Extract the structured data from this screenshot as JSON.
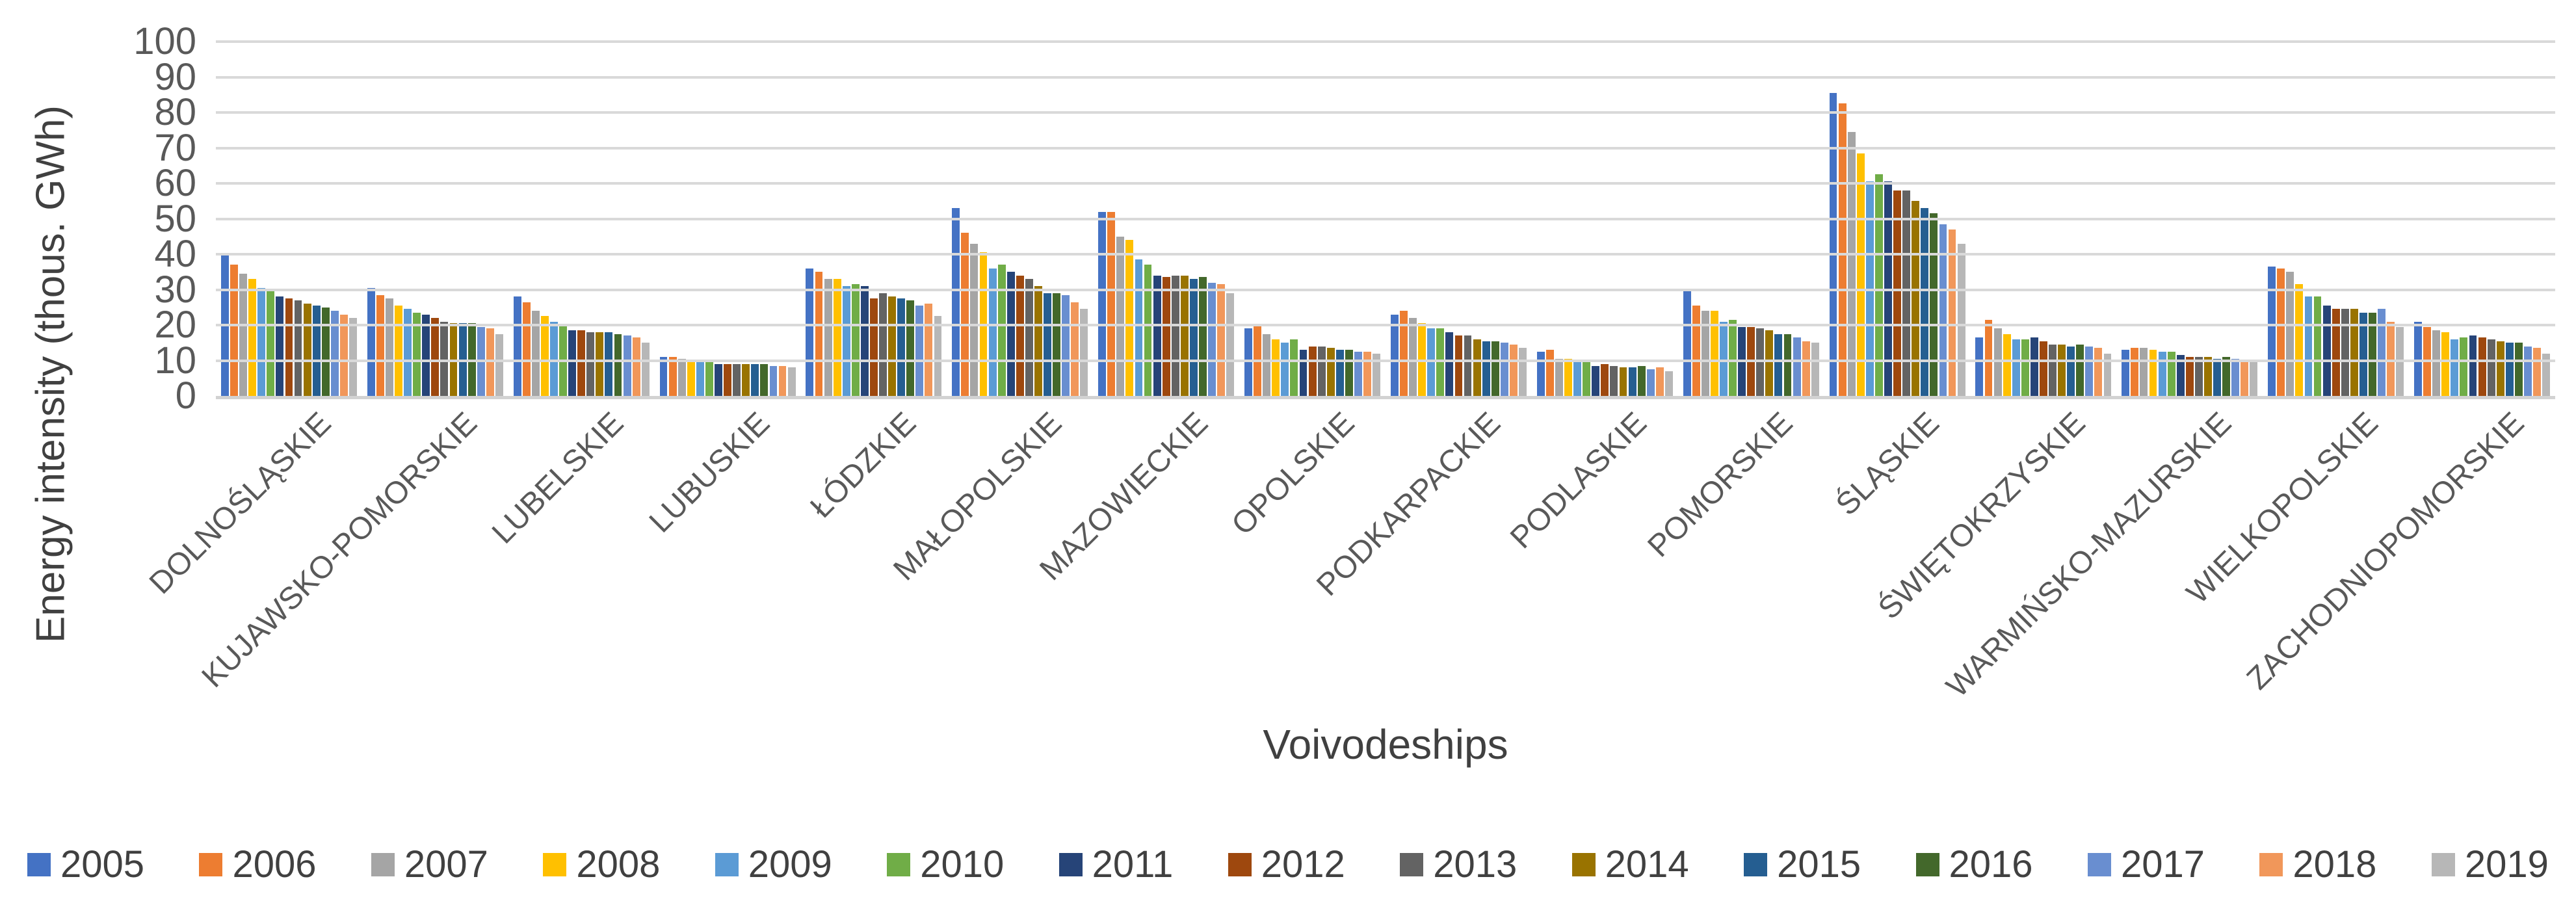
{
  "chart_data": {
    "type": "bar",
    "title": "",
    "xlabel": "Voivodeships",
    "ylabel": "Energy intensity (thous. GWh)",
    "ylim": [
      0,
      100
    ],
    "ytick_step": 10,
    "grid": true,
    "legend_position": "bottom",
    "text_color": "#595959",
    "gridline_color": "#d9d9d9",
    "categories": [
      "DOLNOŚLĄSKIE",
      "KUJAWSKO-POMORSKIE",
      "LUBELSKIE",
      "LUBUSKIE",
      "ŁÓDZKIE",
      "MAŁOPOLSKIE",
      "MAZOWIECKIE",
      "OPOLSKIE",
      "PODKARPACKIE",
      "PODLASKIE",
      "POMORSKIE",
      "ŚLĄSKIE",
      "ŚWIĘTOKRZYSKIE",
      "WARMIŃSKO-MAZURSKIE",
      "WIELKOPOLSKIE",
      "ZACHODNIOPOMORSKIE"
    ],
    "series": [
      {
        "name": "2005",
        "color": "#4472C4",
        "values": [
          40.0,
          30.5,
          28.0,
          11.0,
          36.0,
          53.0,
          52.0,
          19.0,
          23.0,
          12.5,
          30.0,
          85.5,
          16.5,
          13.0,
          36.5,
          21.0
        ]
      },
      {
        "name": "2006",
        "color": "#ED7D31",
        "values": [
          37.0,
          28.5,
          26.5,
          11.0,
          35.0,
          46.0,
          52.0,
          20.0,
          24.0,
          13.0,
          25.5,
          82.5,
          21.5,
          13.5,
          36.0,
          19.5
        ]
      },
      {
        "name": "2007",
        "color": "#A5A5A5",
        "values": [
          34.5,
          27.5,
          24.0,
          10.5,
          33.0,
          43.0,
          45.0,
          17.5,
          22.0,
          10.5,
          24.0,
          74.5,
          19.0,
          13.5,
          35.0,
          18.5
        ]
      },
      {
        "name": "2008",
        "color": "#FFC000",
        "values": [
          33.0,
          25.5,
          22.5,
          10.0,
          33.0,
          40.5,
          44.0,
          16.0,
          20.5,
          10.5,
          24.0,
          68.5,
          17.5,
          13.0,
          31.5,
          18.0
        ]
      },
      {
        "name": "2009",
        "color": "#5B9BD5",
        "values": [
          30.5,
          24.5,
          21.0,
          10.0,
          31.0,
          36.0,
          38.5,
          15.0,
          19.0,
          9.5,
          21.0,
          60.5,
          16.0,
          12.5,
          28.0,
          16.0
        ]
      },
      {
        "name": "2010",
        "color": "#70AD47",
        "values": [
          29.5,
          23.5,
          20.0,
          10.0,
          31.5,
          37.0,
          37.0,
          16.0,
          19.0,
          9.5,
          21.5,
          62.5,
          16.0,
          12.5,
          28.0,
          16.5
        ]
      },
      {
        "name": "2011",
        "color": "#264478",
        "values": [
          28.0,
          23.0,
          18.5,
          9.0,
          31.0,
          35.0,
          34.0,
          13.0,
          18.0,
          8.5,
          19.5,
          60.5,
          16.5,
          11.5,
          25.5,
          17.0
        ]
      },
      {
        "name": "2012",
        "color": "#9E480E",
        "values": [
          27.5,
          22.0,
          18.5,
          9.0,
          27.5,
          34.0,
          33.5,
          14.0,
          17.0,
          9.0,
          19.5,
          58.0,
          15.5,
          11.0,
          24.5,
          16.5
        ]
      },
      {
        "name": "2013",
        "color": "#636363",
        "values": [
          27.0,
          21.0,
          18.0,
          9.0,
          29.0,
          33.0,
          34.0,
          14.0,
          17.0,
          8.5,
          19.0,
          58.0,
          14.5,
          11.0,
          24.5,
          16.0
        ]
      },
      {
        "name": "2014",
        "color": "#997300",
        "values": [
          26.0,
          20.5,
          18.0,
          9.0,
          28.0,
          31.0,
          34.0,
          13.5,
          16.0,
          8.0,
          18.5,
          55.0,
          14.5,
          11.0,
          24.5,
          15.5
        ]
      },
      {
        "name": "2015",
        "color": "#255E91",
        "values": [
          25.5,
          20.5,
          18.0,
          9.0,
          27.5,
          29.0,
          33.0,
          13.0,
          15.5,
          8.0,
          17.5,
          53.0,
          14.0,
          10.5,
          23.5,
          15.0
        ]
      },
      {
        "name": "2016",
        "color": "#43682B",
        "values": [
          25.0,
          20.5,
          17.5,
          9.0,
          27.0,
          29.0,
          33.5,
          13.0,
          15.5,
          8.5,
          17.5,
          51.5,
          14.5,
          11.0,
          23.5,
          15.0
        ]
      },
      {
        "name": "2017",
        "color": "#698ED0",
        "values": [
          24.0,
          19.5,
          17.0,
          8.5,
          25.5,
          28.5,
          32.0,
          12.5,
          15.0,
          7.5,
          16.5,
          48.5,
          14.0,
          10.5,
          24.5,
          14.0
        ]
      },
      {
        "name": "2018",
        "color": "#F1975A",
        "values": [
          23.0,
          19.0,
          16.5,
          8.5,
          26.0,
          26.5,
          31.5,
          12.5,
          14.5,
          8.0,
          15.5,
          47.0,
          13.5,
          10.0,
          21.0,
          13.5
        ]
      },
      {
        "name": "2019",
        "color": "#B7B7B7",
        "values": [
          22.0,
          17.5,
          15.0,
          8.0,
          22.5,
          24.5,
          29.0,
          12.0,
          13.5,
          7.0,
          15.0,
          43.0,
          12.0,
          9.5,
          19.5,
          12.0
        ]
      }
    ]
  }
}
